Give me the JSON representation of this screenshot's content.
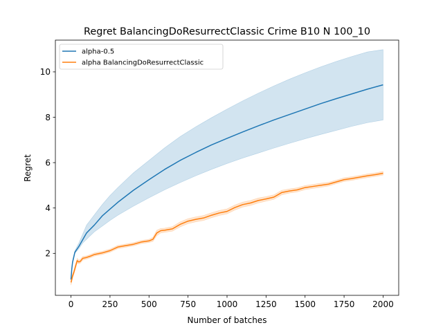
{
  "chart_data": {
    "type": "line",
    "title": "Regret BalancingDoResurrectClassic Crime B10 N 100_10",
    "xlabel": "Number of batches",
    "ylabel": "Regret",
    "xlim": [
      -100,
      2100
    ],
    "ylim": [
      0.15,
      11.4
    ],
    "xticks": [
      0,
      250,
      500,
      750,
      1000,
      1250,
      1500,
      1750,
      2000
    ],
    "yticks": [
      2,
      4,
      6,
      8,
      10
    ],
    "grid": false,
    "legend_position": "top-left",
    "series": [
      {
        "name": "alpha-0.5",
        "color": "#1f77b4",
        "x": [
          0,
          5,
          10,
          25,
          50,
          75,
          100,
          150,
          200,
          250,
          300,
          400,
          500,
          600,
          700,
          800,
          900,
          1000,
          1100,
          1200,
          1300,
          1400,
          1500,
          1600,
          1700,
          1800,
          1900,
          2000
        ],
        "y": [
          0.85,
          1.3,
          1.6,
          2.05,
          2.3,
          2.6,
          2.9,
          3.25,
          3.65,
          3.95,
          4.25,
          4.78,
          5.25,
          5.7,
          6.1,
          6.45,
          6.78,
          7.07,
          7.35,
          7.62,
          7.88,
          8.12,
          8.36,
          8.6,
          8.82,
          9.03,
          9.24,
          9.43
        ],
        "lower": [
          0.8,
          1.25,
          1.55,
          2.0,
          2.2,
          2.45,
          2.62,
          2.95,
          3.2,
          3.45,
          3.68,
          4.08,
          4.45,
          4.8,
          5.12,
          5.42,
          5.7,
          5.96,
          6.2,
          6.42,
          6.64,
          6.85,
          7.05,
          7.24,
          7.42,
          7.6,
          7.76,
          7.88
        ],
        "upper": [
          0.9,
          1.35,
          1.68,
          2.12,
          2.45,
          2.85,
          3.25,
          3.7,
          4.15,
          4.55,
          4.9,
          5.55,
          6.1,
          6.65,
          7.15,
          7.58,
          7.98,
          8.36,
          8.72,
          9.06,
          9.38,
          9.68,
          9.96,
          10.22,
          10.46,
          10.68,
          10.88,
          10.98
        ]
      },
      {
        "name": "alpha BalancingDoResurrectClassic",
        "color": "#ff7f0e",
        "x": [
          0,
          5,
          10,
          20,
          30,
          40,
          50,
          60,
          75,
          100,
          125,
          150,
          200,
          250,
          300,
          350,
          400,
          450,
          500,
          525,
          550,
          575,
          600,
          650,
          700,
          750,
          800,
          850,
          900,
          950,
          1000,
          1050,
          1100,
          1150,
          1200,
          1250,
          1300,
          1350,
          1400,
          1450,
          1500,
          1550,
          1600,
          1650,
          1700,
          1750,
          1800,
          1850,
          1900,
          1950,
          2000
        ],
        "y": [
          0.72,
          0.85,
          1.0,
          1.2,
          1.45,
          1.68,
          1.62,
          1.65,
          1.78,
          1.82,
          1.88,
          1.95,
          2.02,
          2.12,
          2.28,
          2.34,
          2.4,
          2.5,
          2.55,
          2.62,
          2.9,
          3.0,
          3.02,
          3.08,
          3.28,
          3.42,
          3.5,
          3.56,
          3.68,
          3.78,
          3.85,
          4.02,
          4.15,
          4.22,
          4.33,
          4.4,
          4.48,
          4.68,
          4.75,
          4.8,
          4.9,
          4.95,
          5.0,
          5.05,
          5.15,
          5.25,
          5.3,
          5.36,
          5.42,
          5.47,
          5.53
        ],
        "lower": [
          0.6,
          0.74,
          0.9,
          1.1,
          1.35,
          1.58,
          1.54,
          1.57,
          1.7,
          1.75,
          1.81,
          1.88,
          1.95,
          2.05,
          2.21,
          2.27,
          2.33,
          2.43,
          2.48,
          2.53,
          2.78,
          2.9,
          2.93,
          2.98,
          3.17,
          3.31,
          3.39,
          3.45,
          3.57,
          3.67,
          3.74,
          3.91,
          4.04,
          4.11,
          4.22,
          4.3,
          4.38,
          4.58,
          4.66,
          4.71,
          4.81,
          4.86,
          4.91,
          4.97,
          5.07,
          5.17,
          5.22,
          5.28,
          5.34,
          5.39,
          5.45
        ],
        "upper": [
          0.84,
          0.96,
          1.1,
          1.3,
          1.55,
          1.78,
          1.7,
          1.73,
          1.86,
          1.89,
          1.95,
          2.02,
          2.09,
          2.19,
          2.35,
          2.41,
          2.47,
          2.57,
          2.62,
          2.71,
          3.02,
          3.1,
          3.11,
          3.18,
          3.39,
          3.53,
          3.61,
          3.67,
          3.79,
          3.89,
          3.96,
          4.13,
          4.26,
          4.33,
          4.44,
          4.5,
          4.58,
          4.78,
          4.84,
          4.89,
          4.99,
          5.04,
          5.09,
          5.13,
          5.23,
          5.33,
          5.38,
          5.44,
          5.5,
          5.55,
          5.61
        ]
      }
    ]
  }
}
